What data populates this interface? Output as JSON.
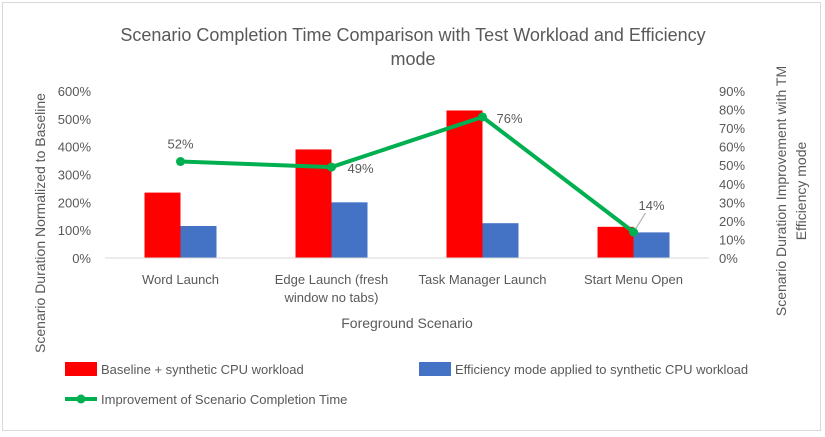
{
  "chart_data": {
    "type": "bar+line",
    "title": "Scenario Completion Time Comparison with Test Workload and Efficiency mode",
    "title_lines": [
      "Scenario Completion Time Comparison with Test Workload and Efficiency",
      "mode"
    ],
    "xlabel": "Foreground Scenario",
    "ylabel": "Scenario Duration Normalized to Baseline",
    "y2label": "Scenario Duration Improvement with TM Efficiency mode",
    "y2label_lines": [
      "Scenario Duration Improvement with TM",
      "Efficiency mode"
    ],
    "categories": [
      "Word Launch",
      "Edge Launch (fresh window no tabs)",
      "Task Manager Launch",
      "Start Menu Open"
    ],
    "category_lines": [
      [
        "Word Launch"
      ],
      [
        "Edge Launch (fresh",
        "window no tabs)"
      ],
      [
        "Task Manager Launch"
      ],
      [
        "Start Menu Open"
      ]
    ],
    "ylim": [
      0,
      600
    ],
    "yticks": [
      "0%",
      "100%",
      "200%",
      "300%",
      "400%",
      "500%",
      "600%"
    ],
    "y2lim": [
      0,
      90
    ],
    "y2ticks": [
      "0%",
      "10%",
      "20%",
      "30%",
      "40%",
      "50%",
      "60%",
      "70%",
      "80%",
      "90%"
    ],
    "series": [
      {
        "name": "Baseline + synthetic CPU  workload",
        "kind": "bar",
        "axis": "left",
        "color": "#ff0000",
        "values": [
          235,
          390,
          530,
          112
        ]
      },
      {
        "name": "Efficiency mode applied to synthetic CPU workload",
        "kind": "bar",
        "axis": "left",
        "color": "#4472c4",
        "values": [
          115,
          200,
          125,
          92
        ]
      },
      {
        "name": "Improvement of Scenario Completion Time",
        "kind": "line",
        "axis": "right",
        "color": "#00b050",
        "values": [
          52,
          49,
          76,
          14
        ],
        "labels": [
          "52%",
          "49%",
          "76%",
          "14%"
        ]
      }
    ],
    "grid": false,
    "legend": "bottom"
  }
}
